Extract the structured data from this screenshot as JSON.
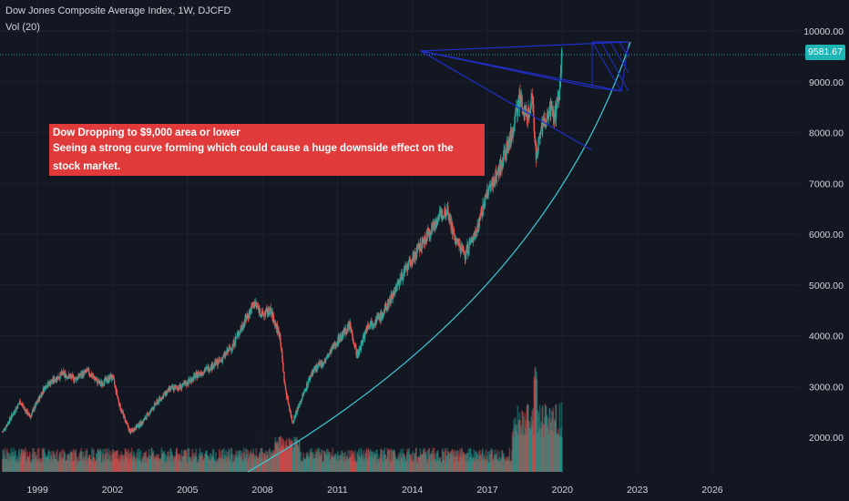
{
  "header": {
    "title": "Dow Jones Composite Average Index, 1W, DJCFD",
    "volume_label": "Vol (20)"
  },
  "annotation": {
    "line1": "Dow Dropping to $9,000 area or lower",
    "line2": "Seeing a strong curve forming which could cause a huge downside effect on the stock market."
  },
  "price_badge": "9581.67",
  "colors": {
    "background": "#131722",
    "up": "#26a69a",
    "down": "#ef5350",
    "trendline": "#1f2fc9",
    "curve": "#3ec9d6",
    "badge": "#1fb5b5",
    "annotation_bg": "#e03a3a"
  },
  "chart_data": {
    "type": "candlestick",
    "title": "Dow Jones Composite Average Index, 1W, DJCFD",
    "x_tick_labels": [
      "1999",
      "2002",
      "2005",
      "2008",
      "2011",
      "2014",
      "2017",
      "2020",
      "2023",
      "2026"
    ],
    "y_tick_labels": [
      "2000.00",
      "3000.00",
      "4000.00",
      "5000.00",
      "6000.00",
      "7000.00",
      "8000.00",
      "9000.00",
      "10000.00"
    ],
    "x_range": [
      1997.5,
      2029.5
    ],
    "y_range": [
      1300,
      10500
    ],
    "last_price": 9581.67,
    "price_path": [
      [
        1997.6,
        2100
      ],
      [
        1998.3,
        2700
      ],
      [
        1998.7,
        2400
      ],
      [
        1999.3,
        3000
      ],
      [
        2000.0,
        3250
      ],
      [
        2000.5,
        3150
      ],
      [
        2001.0,
        3300
      ],
      [
        2001.5,
        3050
      ],
      [
        2002.0,
        3200
      ],
      [
        2002.3,
        2600
      ],
      [
        2002.7,
        2100
      ],
      [
        2003.2,
        2300
      ],
      [
        2003.8,
        2700
      ],
      [
        2004.3,
        2950
      ],
      [
        2004.8,
        3000
      ],
      [
        2005.3,
        3200
      ],
      [
        2005.8,
        3350
      ],
      [
        2006.3,
        3500
      ],
      [
        2006.8,
        3800
      ],
      [
        2007.3,
        4300
      ],
      [
        2007.7,
        4650
      ],
      [
        2008.0,
        4400
      ],
      [
        2008.3,
        4500
      ],
      [
        2008.7,
        4000
      ],
      [
        2008.9,
        3000
      ],
      [
        2009.2,
        2300
      ],
      [
        2009.6,
        2800
      ],
      [
        2010.0,
        3300
      ],
      [
        2010.5,
        3500
      ],
      [
        2011.0,
        3900
      ],
      [
        2011.5,
        4200
      ],
      [
        2011.8,
        3600
      ],
      [
        2012.2,
        4200
      ],
      [
        2012.8,
        4400
      ],
      [
        2013.0,
        4600
      ],
      [
        2013.5,
        5100
      ],
      [
        2014.0,
        5500
      ],
      [
        2014.5,
        5900
      ],
      [
        2015.0,
        6300
      ],
      [
        2015.4,
        6500
      ],
      [
        2015.7,
        5900
      ],
      [
        2016.1,
        5600
      ],
      [
        2016.5,
        6000
      ],
      [
        2017.0,
        6800
      ],
      [
        2017.5,
        7300
      ],
      [
        2018.0,
        8000
      ],
      [
        2018.3,
        8700
      ],
      [
        2018.6,
        8300
      ],
      [
        2018.8,
        8700
      ],
      [
        2018.95,
        7500
      ],
      [
        2019.2,
        8100
      ],
      [
        2019.5,
        8500
      ],
      [
        2019.7,
        8300
      ],
      [
        2019.9,
        8900
      ],
      [
        2020.0,
        9580
      ]
    ],
    "volume_range": [
      0,
      3600
    ]
  }
}
